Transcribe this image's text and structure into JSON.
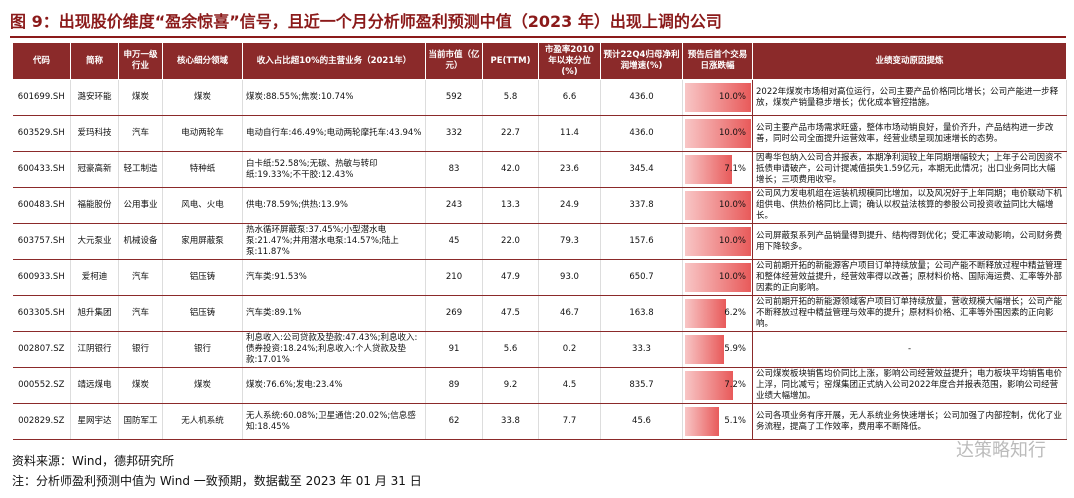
{
  "header": {
    "title": "图 9：出现股价维度“盈余惊喜”信号，且近一个月分析师盈利预测中值（2023 年）出现上调的公司"
  },
  "table": {
    "headers": [
      "代码",
      "简称",
      "申万一级行业",
      "核心细分领域",
      "收入占比超10%的主营业务（2021年）",
      "当前市值（亿元）",
      "PE(TTM)",
      "市盈率2010年以来分位(%)",
      "预计22Q4归母净利润增速(%)",
      "预告后首个交易日涨跌幅",
      "业绩变动原因提炼"
    ],
    "rows": [
      [
        "601699.SH",
        "潞安环能",
        "煤炭",
        "煤炭",
        "煤炭:88.55%;焦炭:10.74%",
        "592",
        "5.8",
        "6.6",
        "436.0",
        {
          "value": 10.0,
          "label": "10.0%"
        },
        "2022年煤炭市场相对高位运行，公司主要产品价格同比增长；公司产能进一步释放，煤炭产销量稳步增长；优化成本管控措施。"
      ],
      [
        "603529.SH",
        "爱玛科技",
        "汽车",
        "电动两轮车",
        "电动自行车:46.49%;电动两轮摩托车:43.94%",
        "332",
        "22.7",
        "11.4",
        "436.0",
        {
          "value": 10.0,
          "label": "10.0%"
        },
        "公司主要产品市场需求旺盛，整体市场动销良好，量价齐升，产品结构进一步改善，同时公司全面提升运营效率，经营业绩呈现加速增长的态势。"
      ],
      [
        "600433.SH",
        "冠豪高新",
        "轻工制造",
        "特种纸",
        "白卡纸:52.58%;无碳、热敏与转印纸:19.33%;不干胶:12.43%",
        "83",
        "42.0",
        "23.6",
        "345.4",
        {
          "value": 7.1,
          "label": "7.1%"
        },
        "因粤华包纳入公司合并报表，本期净利润较上年同期增幅较大；上年子公司因资不抵债申请破产，公司计提减值损失1.59亿元，本期无此情况；出口业务同比大幅增长；三项费用收窄。"
      ],
      [
        "600483.SH",
        "福能股份",
        "公用事业",
        "风电、火电",
        "供电:78.59%;供热:13.9%",
        "243",
        "13.3",
        "24.9",
        "337.8",
        {
          "value": 10.0,
          "label": "10.0%"
        },
        "公司风力发电机组在运装机规模同比增加，以及风况好于上年同期；电价联动下机组供电、供热价格同比上调；确认以权益法核算的参股公司投资收益同比大幅增长。"
      ],
      [
        "603757.SH",
        "大元泵业",
        "机械设备",
        "家用屏蔽泵",
        "热水循环屏蔽泵:37.45%;小型潜水电泵:21.47%;井用潜水电泵:14.57%;陆上泵:11.87%",
        "45",
        "22.0",
        "79.3",
        "157.6",
        {
          "value": 10.0,
          "label": "10.0%"
        },
        "公司屏蔽泵系列产品销量得到提升、结构得到优化；受汇率波动影响，公司财务费用下降较多。"
      ],
      [
        "600933.SH",
        "爱柯迪",
        "汽车",
        "铝压铸",
        "汽车类:91.53%",
        "210",
        "47.9",
        "93.0",
        "650.7",
        {
          "value": 10.0,
          "label": "10.0%"
        },
        "公司前期开拓的新能源客户项目订单持续放量；公司产能不断释放过程中精益管理和整体经营效益提升，经营效率得以改善；原材料价格、国际海运费、汇率等外部因素的正向影响。"
      ],
      [
        "603305.SH",
        "旭升集团",
        "汽车",
        "铝压铸",
        "汽车类:89.1%",
        "269",
        "47.5",
        "46.7",
        "163.8",
        {
          "value": 6.2,
          "label": "6.2%"
        },
        "公司前期开拓的新能源领域客户项目订单持续放量，营收规模大幅增长；公司产能不断释放过程中精益管理与效率的提升；原材料价格、汇率等外围因素的正向影响。"
      ],
      [
        "002807.SZ",
        "江阴银行",
        "银行",
        "银行",
        "利息收入:公司贷款及垫款:47.43%;利息收入:债券投资:18.24%;利息收入:个人贷款及垫款:17.01%",
        "91",
        "5.6",
        "0.2",
        "33.3",
        {
          "value": 5.9,
          "label": "5.9%"
        },
        "-"
      ],
      [
        "000552.SZ",
        "靖远煤电",
        "煤炭",
        "煤炭",
        "煤炭:76.6%;发电:23.4%",
        "89",
        "9.2",
        "4.5",
        "835.7",
        {
          "value": 7.2,
          "label": "7.2%"
        },
        "公司煤炭板块销售均价同比上涨，影响公司经营效益提升；电力板块平均销售电价上浮，同比减亏；窑煤集团正式纳入公司2022年度合并报表范围，影响公司经营业绩大幅增加。"
      ],
      [
        "002829.SZ",
        "星网宇达",
        "国防军工",
        "无人机系统",
        "无人系统:60.08%;卫星通信:20.02%;信息感知:18.45%",
        "62",
        "33.8",
        "7.7",
        "45.6",
        {
          "value": 5.1,
          "label": "5.1%"
        },
        "公司各项业务有序开展，无人系统业务快速增长；公司加强了内部控制，优化了业务流程，提高了工作效率，费用率不断降低。"
      ]
    ]
  },
  "footer": {
    "source": "资料来源：Wind，德邦研究所",
    "note": "注：分析师盈利预测中值为 Wind 一致预期，数据截至 2023 年 01 月 31 日",
    "watermark": "达策略知行"
  }
}
